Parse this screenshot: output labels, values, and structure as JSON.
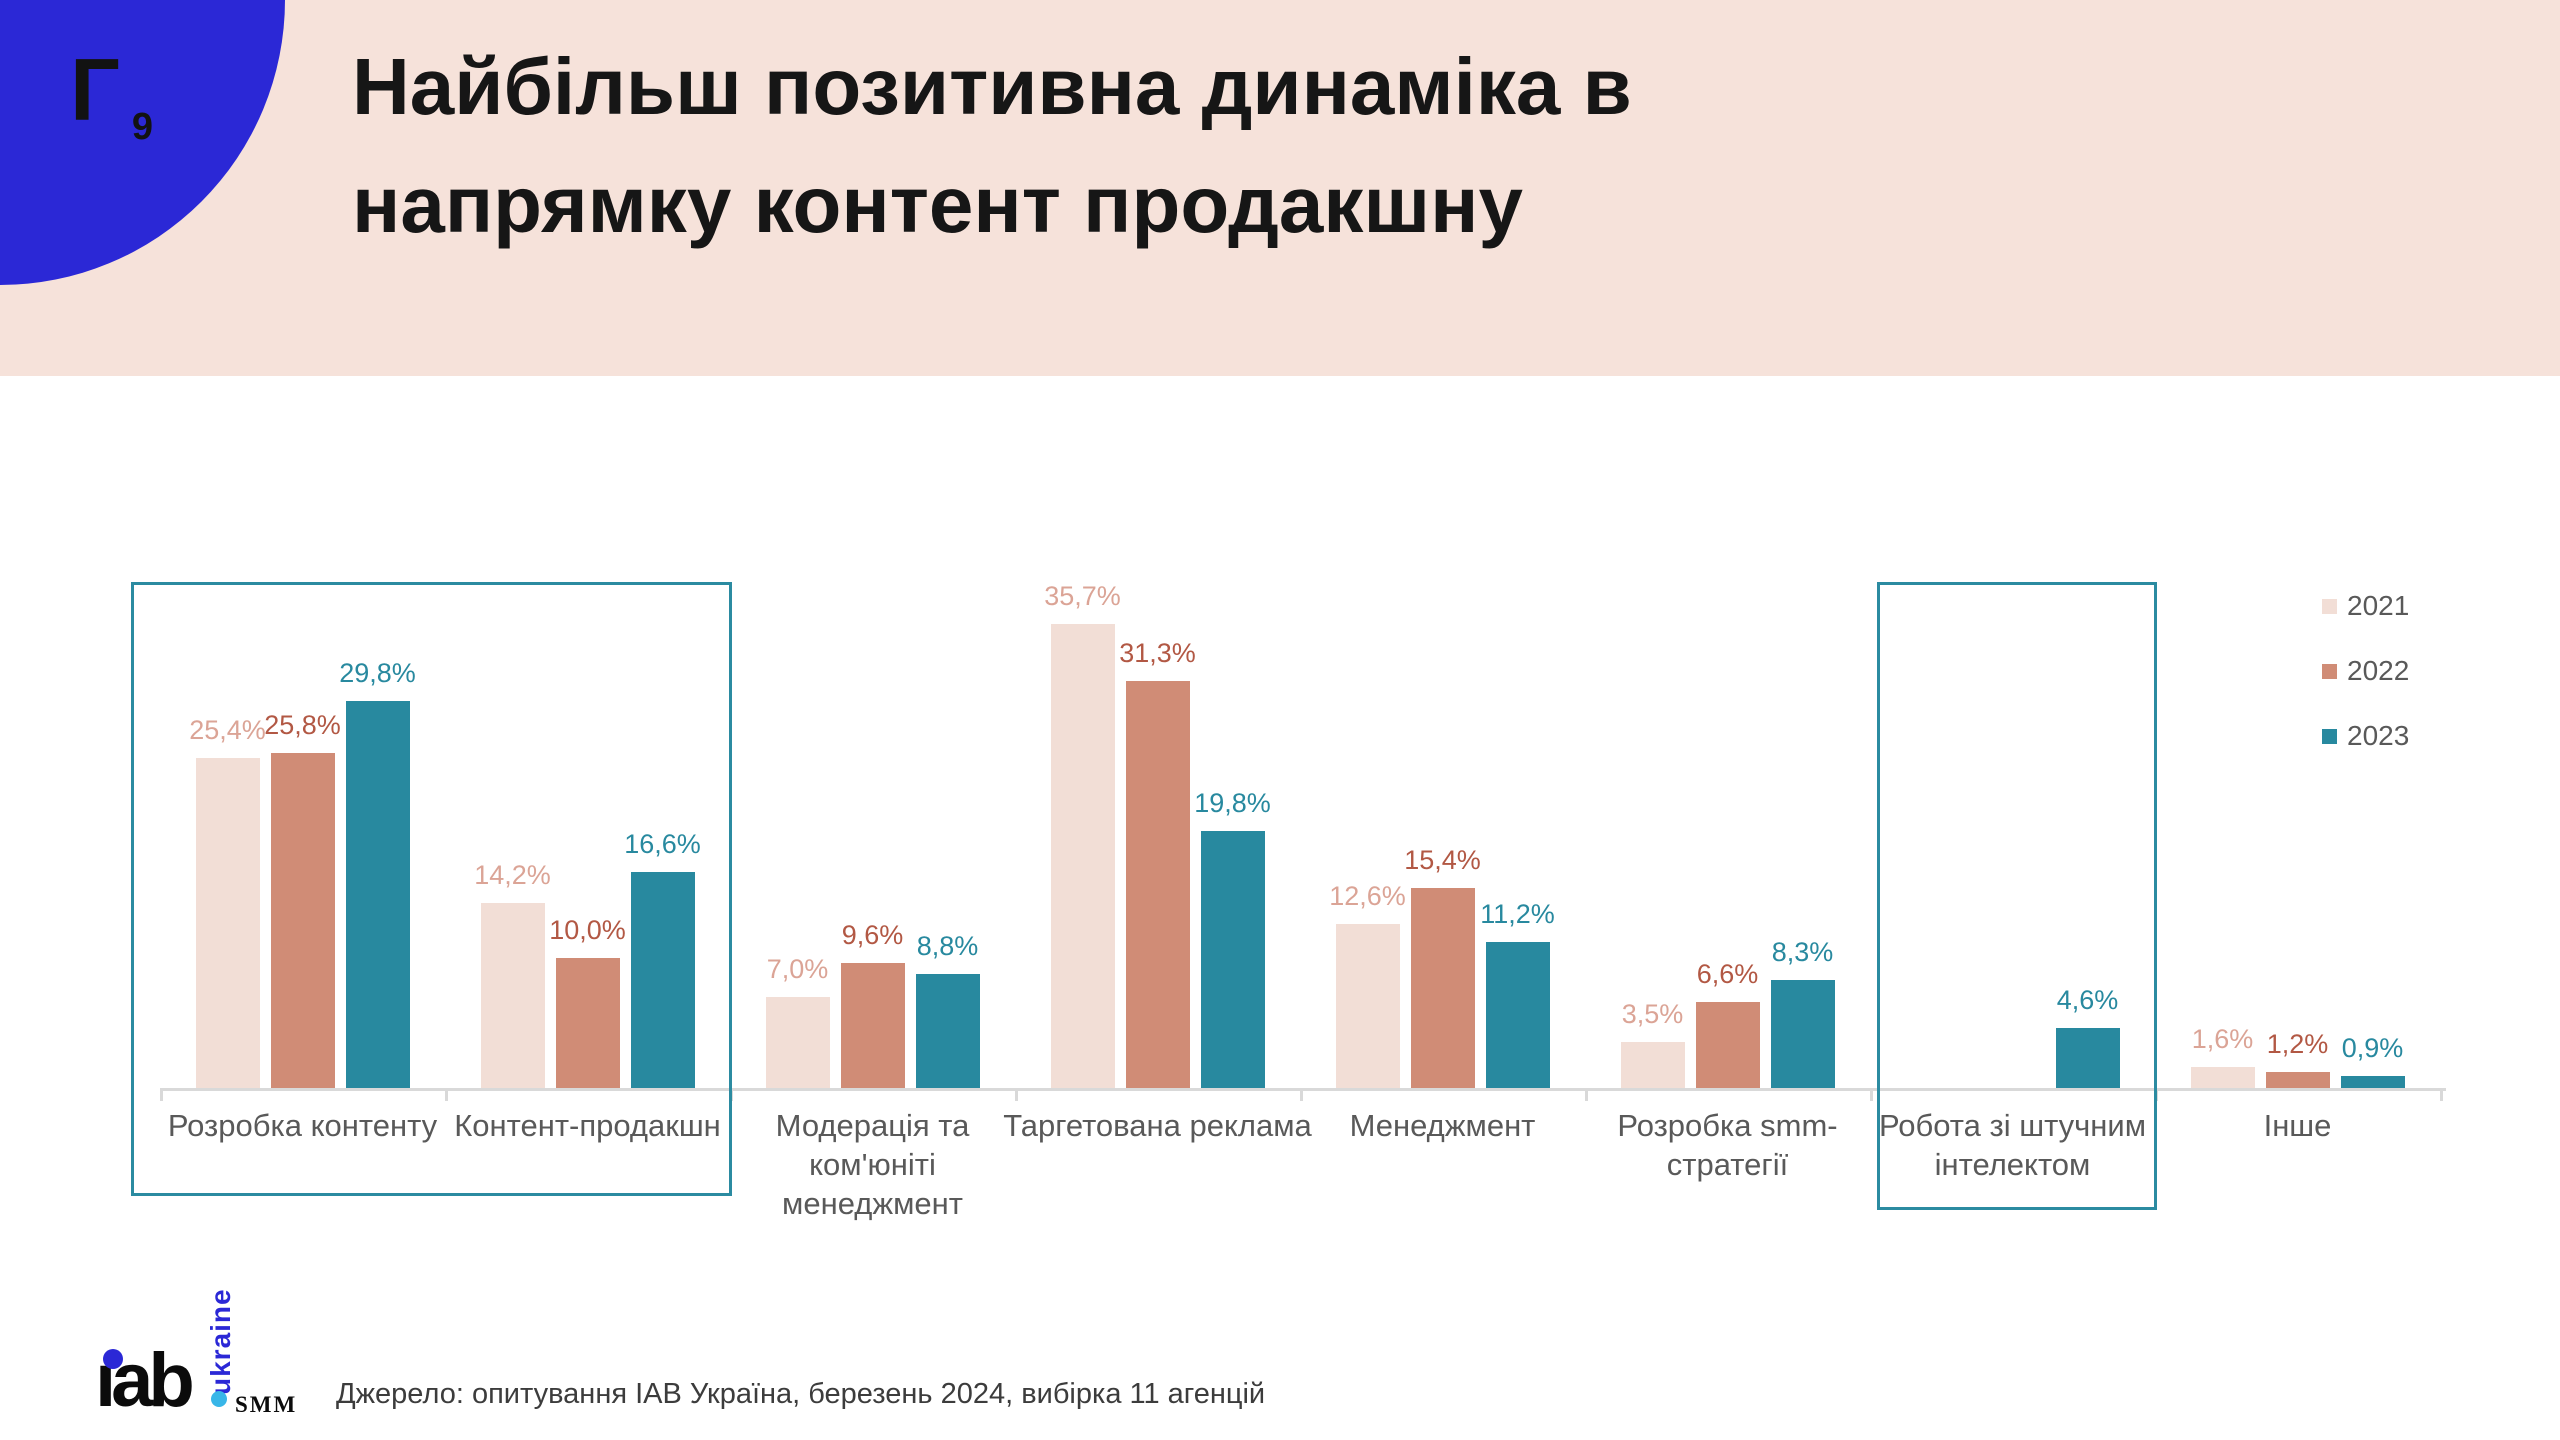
{
  "slide": {
    "badge": {
      "letter": "Г",
      "number": "9"
    },
    "title_line1": "Найбільш позитивна динаміка в",
    "title_line2": "напрямку контент продакшну",
    "source": "Джерело: опитування IAB Україна, березень 2024, вибірка 11 агенцій"
  },
  "logo": {
    "iab": "iab",
    "ukraine": "ukraine",
    "smm": "SMM"
  },
  "colors": {
    "header_bg": "#f6e2da",
    "corner_circle": "#2b28d6",
    "logo_blue": "#2b28d6",
    "logo_cyan": "#38b6e8",
    "axis": "#d9d9d9",
    "category_text": "#595959",
    "highlight_border": "#2b8ba1"
  },
  "chart_data": {
    "type": "bar",
    "title": "",
    "xlabel": "",
    "ylabel": "",
    "ylim": [
      0,
      36
    ],
    "grid": false,
    "legend_position": "top-right",
    "value_label_format": "comma-decimal-percent",
    "categories": [
      "Розробка контенту",
      "Контент-продакшн",
      "Модерація та ком'юніті менеджмент",
      "Таргетована реклама",
      "Менеджмент",
      "Розробка smm-стратегії",
      "Робота зі штучним інтелектом",
      "Інше"
    ],
    "series": [
      {
        "name": "2021",
        "color": "#f2ded6",
        "label_color": "#dba496",
        "values": [
          25.4,
          14.2,
          7.0,
          35.7,
          12.6,
          3.5,
          null,
          1.6
        ],
        "labels": [
          "25,4%",
          "14,2%",
          "7,0%",
          "35,7%",
          "12,6%",
          "3,5%",
          null,
          "1,6%"
        ]
      },
      {
        "name": "2022",
        "color": "#d08c76",
        "label_color": "#b25844",
        "values": [
          25.8,
          10.0,
          9.6,
          31.3,
          15.4,
          6.6,
          null,
          1.2
        ],
        "labels": [
          "25,8%",
          "10,0%",
          "9,6%",
          "31,3%",
          "15,4%",
          "6,6%",
          null,
          "1,2%"
        ]
      },
      {
        "name": "2023",
        "color": "#28899f",
        "label_color": "#28899f",
        "values": [
          29.8,
          16.6,
          8.8,
          19.8,
          11.2,
          8.3,
          4.6,
          0.9
        ],
        "labels": [
          "29,8%",
          "16,6%",
          "8,8%",
          "19,8%",
          "11,2%",
          "8,3%",
          "4,6%",
          "0,9%"
        ]
      }
    ],
    "highlights": [
      {
        "from_category": 0,
        "to_category": 1
      },
      {
        "from_category": 6,
        "to_category": 6
      }
    ]
  }
}
